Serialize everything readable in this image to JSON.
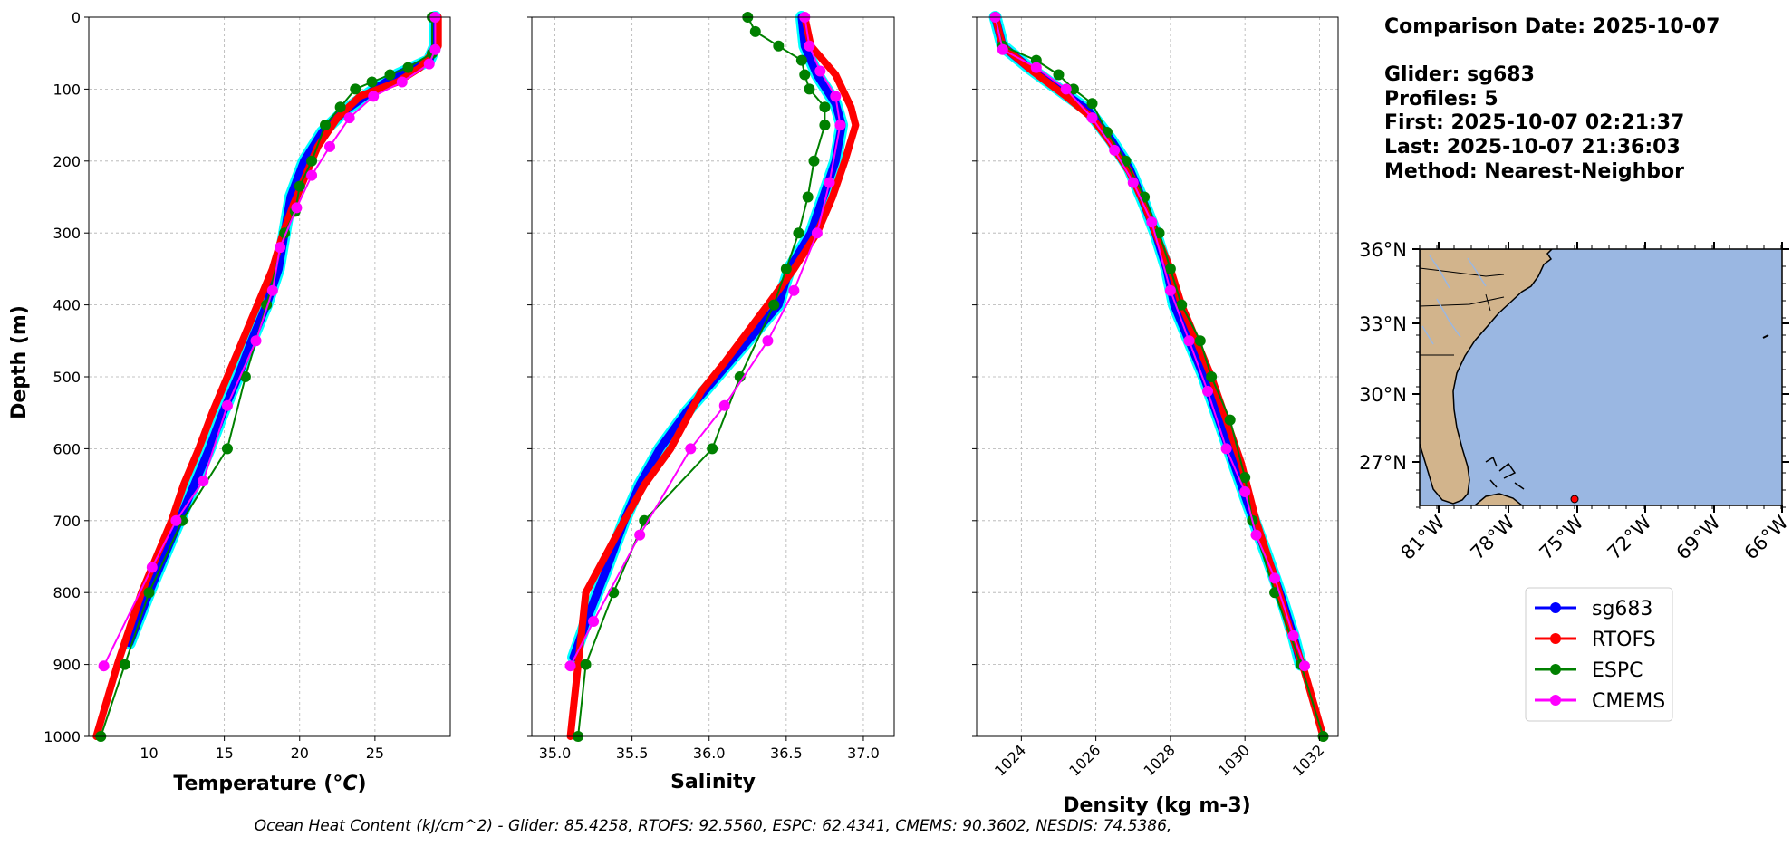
{
  "chart_data": [
    {
      "type": "line",
      "xlabel": "Temperature ($^oC$)",
      "ylabel": "Depth (m)",
      "xlim": [
        6,
        30
      ],
      "ylim": [
        1000,
        0
      ],
      "xticks": [
        "10",
        "15",
        "20",
        "25"
      ],
      "yticks": [
        "0",
        "100",
        "200",
        "300",
        "400",
        "500",
        "600",
        "700",
        "800",
        "900",
        "1000"
      ],
      "grid": true,
      "series": [
        {
          "name": "sg683",
          "points": [
            [
              29.0,
              0
            ],
            [
              29.0,
              20
            ],
            [
              29.0,
              40
            ],
            [
              28.6,
              60
            ],
            [
              26.5,
              80
            ],
            [
              25.0,
              100
            ],
            [
              23.0,
              130
            ],
            [
              21.5,
              160
            ],
            [
              20.3,
              200
            ],
            [
              19.4,
              250
            ],
            [
              19.0,
              300
            ],
            [
              18.6,
              350
            ],
            [
              17.8,
              400
            ],
            [
              16.8,
              450
            ],
            [
              15.9,
              500
            ],
            [
              14.9,
              550
            ],
            [
              14.0,
              600
            ],
            [
              13.0,
              650
            ],
            [
              12.0,
              700
            ],
            [
              11.0,
              750
            ],
            [
              10.0,
              800
            ],
            [
              8.7,
              870
            ]
          ]
        },
        {
          "name": "RTOFS",
          "points": [
            [
              29.2,
              0
            ],
            [
              29.2,
              40
            ],
            [
              28.0,
              70
            ],
            [
              26.5,
              90
            ],
            [
              24.0,
              110
            ],
            [
              22.5,
              140
            ],
            [
              21.2,
              180
            ],
            [
              20.4,
              220
            ],
            [
              19.6,
              260
            ],
            [
              18.9,
              300
            ],
            [
              18.2,
              350
            ],
            [
              17.2,
              400
            ],
            [
              16.2,
              450
            ],
            [
              15.2,
              500
            ],
            [
              14.2,
              550
            ],
            [
              13.3,
              600
            ],
            [
              12.3,
              650
            ],
            [
              11.5,
              700
            ],
            [
              10.5,
              750
            ],
            [
              9.5,
              800
            ],
            [
              7.9,
              900
            ],
            [
              6.5,
              1000
            ]
          ]
        },
        {
          "name": "ESPC",
          "points": [
            [
              28.8,
              0
            ],
            [
              28.8,
              50
            ],
            [
              27.2,
              70
            ],
            [
              26.0,
              80
            ],
            [
              24.8,
              90
            ],
            [
              23.7,
              100
            ],
            [
              22.7,
              125
            ],
            [
              21.7,
              150
            ],
            [
              20.8,
              200
            ],
            [
              20.0,
              235
            ],
            [
              19.7,
              270
            ],
            [
              19.0,
              300
            ],
            [
              17.8,
              400
            ],
            [
              16.4,
              500
            ],
            [
              15.2,
              600
            ],
            [
              12.2,
              700
            ],
            [
              10.0,
              800
            ],
            [
              8.4,
              900
            ],
            [
              6.8,
              1000
            ]
          ]
        },
        {
          "name": "CMEMS",
          "points": [
            [
              29.0,
              0
            ],
            [
              29.0,
              45
            ],
            [
              28.6,
              65
            ],
            [
              26.8,
              90
            ],
            [
              24.9,
              110
            ],
            [
              23.3,
              140
            ],
            [
              22.0,
              180
            ],
            [
              20.8,
              220
            ],
            [
              19.8,
              265
            ],
            [
              18.7,
              320
            ],
            [
              18.2,
              380
            ],
            [
              17.1,
              450
            ],
            [
              15.2,
              540
            ],
            [
              13.6,
              645
            ],
            [
              11.8,
              700
            ],
            [
              10.2,
              765
            ],
            [
              7.0,
              902
            ]
          ]
        }
      ]
    },
    {
      "type": "line",
      "xlabel": "Salinity",
      "ylabel": "",
      "xlim": [
        34.85,
        37.2
      ],
      "ylim": [
        1000,
        0
      ],
      "xticks": [
        "35.0",
        "35.5",
        "36.0",
        "36.5",
        "37.0"
      ],
      "grid": true,
      "series": [
        {
          "name": "sg683",
          "points": [
            [
              36.6,
              0
            ],
            [
              36.62,
              40
            ],
            [
              36.7,
              80
            ],
            [
              36.82,
              120
            ],
            [
              36.86,
              150
            ],
            [
              36.82,
              200
            ],
            [
              36.74,
              250
            ],
            [
              36.66,
              300
            ],
            [
              36.52,
              350
            ],
            [
              36.45,
              400
            ],
            [
              36.25,
              450
            ],
            [
              36.05,
              500
            ],
            [
              35.85,
              550
            ],
            [
              35.68,
              600
            ],
            [
              35.55,
              650
            ],
            [
              35.45,
              700
            ],
            [
              35.33,
              770
            ],
            [
              35.22,
              830
            ],
            [
              35.12,
              890
            ]
          ]
        },
        {
          "name": "RTOFS",
          "points": [
            [
              36.62,
              0
            ],
            [
              36.66,
              40
            ],
            [
              36.82,
              80
            ],
            [
              36.92,
              125
            ],
            [
              36.95,
              150
            ],
            [
              36.88,
              200
            ],
            [
              36.8,
              250
            ],
            [
              36.7,
              300
            ],
            [
              36.55,
              350
            ],
            [
              36.38,
              400
            ],
            [
              36.1,
              480
            ],
            [
              35.95,
              520
            ],
            [
              35.75,
              600
            ],
            [
              35.58,
              650
            ],
            [
              35.45,
              700
            ],
            [
              35.2,
              800
            ],
            [
              35.1,
              1000
            ]
          ]
        },
        {
          "name": "ESPC",
          "points": [
            [
              36.25,
              0
            ],
            [
              36.3,
              20
            ],
            [
              36.45,
              40
            ],
            [
              36.6,
              60
            ],
            [
              36.62,
              80
            ],
            [
              36.65,
              100
            ],
            [
              36.75,
              125
            ],
            [
              36.75,
              150
            ],
            [
              36.68,
              200
            ],
            [
              36.64,
              250
            ],
            [
              36.58,
              300
            ],
            [
              36.5,
              350
            ],
            [
              36.42,
              400
            ],
            [
              36.2,
              500
            ],
            [
              36.02,
              600
            ],
            [
              35.58,
              700
            ],
            [
              35.38,
              800
            ],
            [
              35.2,
              900
            ],
            [
              35.15,
              1000
            ]
          ]
        },
        {
          "name": "CMEMS",
          "points": [
            [
              36.62,
              0
            ],
            [
              36.65,
              40
            ],
            [
              36.72,
              75
            ],
            [
              36.82,
              110
            ],
            [
              36.85,
              150
            ],
            [
              36.78,
              230
            ],
            [
              36.7,
              300
            ],
            [
              36.55,
              380
            ],
            [
              36.38,
              450
            ],
            [
              36.1,
              540
            ],
            [
              35.88,
              600
            ],
            [
              35.55,
              720
            ],
            [
              35.25,
              840
            ],
            [
              35.1,
              902
            ]
          ]
        }
      ]
    },
    {
      "type": "line",
      "xlabel": "Density (kg m-3)",
      "ylabel": "",
      "xlim": [
        1022.8,
        1032.5
      ],
      "ylim": [
        1000,
        0
      ],
      "xticks": [
        "1024",
        "1026",
        "1028",
        "1030",
        "1032"
      ],
      "grid": true,
      "series": [
        {
          "name": "sg683",
          "points": [
            [
              1023.3,
              0
            ],
            [
              1023.5,
              40
            ],
            [
              1024.2,
              70
            ],
            [
              1025.0,
              100
            ],
            [
              1025.8,
              130
            ],
            [
              1026.4,
              170
            ],
            [
              1026.9,
              210
            ],
            [
              1027.3,
              260
            ],
            [
              1027.6,
              300
            ],
            [
              1027.9,
              350
            ],
            [
              1028.1,
              400
            ],
            [
              1028.5,
              450
            ],
            [
              1028.9,
              500
            ],
            [
              1029.3,
              560
            ],
            [
              1029.7,
              620
            ],
            [
              1030.1,
              680
            ],
            [
              1030.6,
              750
            ],
            [
              1031.0,
              810
            ],
            [
              1031.3,
              860
            ],
            [
              1031.5,
              900
            ]
          ]
        },
        {
          "name": "RTOFS",
          "points": [
            [
              1023.3,
              0
            ],
            [
              1023.5,
              40
            ],
            [
              1024.3,
              75
            ],
            [
              1025.2,
              110
            ],
            [
              1025.9,
              140
            ],
            [
              1026.4,
              175
            ],
            [
              1026.9,
              215
            ],
            [
              1027.3,
              260
            ],
            [
              1027.6,
              300
            ],
            [
              1028.0,
              350
            ],
            [
              1028.3,
              400
            ],
            [
              1028.7,
              450
            ],
            [
              1029.1,
              500
            ],
            [
              1029.5,
              560
            ],
            [
              1029.9,
              620
            ],
            [
              1030.3,
              700
            ],
            [
              1030.8,
              780
            ],
            [
              1031.2,
              850
            ],
            [
              1031.6,
              910
            ],
            [
              1032.1,
              1000
            ]
          ]
        },
        {
          "name": "ESPC",
          "points": [
            [
              1023.3,
              0
            ],
            [
              1023.5,
              40
            ],
            [
              1024.4,
              60
            ],
            [
              1025.0,
              80
            ],
            [
              1025.4,
              100
            ],
            [
              1025.9,
              120
            ],
            [
              1026.3,
              160
            ],
            [
              1026.8,
              200
            ],
            [
              1027.3,
              250
            ],
            [
              1027.7,
              300
            ],
            [
              1028.0,
              350
            ],
            [
              1028.3,
              400
            ],
            [
              1028.8,
              450
            ],
            [
              1029.1,
              500
            ],
            [
              1029.6,
              560
            ],
            [
              1030.0,
              640
            ],
            [
              1030.2,
              700
            ],
            [
              1030.8,
              800
            ],
            [
              1031.5,
              900
            ],
            [
              1032.1,
              1000
            ]
          ]
        },
        {
          "name": "CMEMS",
          "points": [
            [
              1023.3,
              0
            ],
            [
              1023.5,
              45
            ],
            [
              1024.4,
              70
            ],
            [
              1025.2,
              100
            ],
            [
              1025.9,
              140
            ],
            [
              1026.5,
              185
            ],
            [
              1027.0,
              230
            ],
            [
              1027.5,
              285
            ],
            [
              1028.0,
              380
            ],
            [
              1028.5,
              450
            ],
            [
              1029.0,
              520
            ],
            [
              1029.5,
              600
            ],
            [
              1030.0,
              660
            ],
            [
              1030.3,
              720
            ],
            [
              1030.8,
              780
            ],
            [
              1031.3,
              860
            ],
            [
              1031.6,
              902
            ]
          ]
        }
      ]
    }
  ],
  "info": {
    "date": "Comparison Date: 2025-10-07",
    "glider": "Glider: sg683",
    "profiles": "Profiles: 5",
    "first": "First: 2025-10-07 02:21:37",
    "last": "Last: 2025-10-07 21:36:03",
    "method": "Method: Nearest-Neighbor"
  },
  "map": {
    "lat_labels": [
      "36°N",
      "33°N",
      "30°N",
      "27°N"
    ],
    "lon_labels": [
      "81°W",
      "78°W",
      "75°W",
      "72°W",
      "69°W",
      "66°W"
    ],
    "land_color": "#d2b48c",
    "ocean_color": "#9ab7e2",
    "marker_lon": -74.7,
    "marker_lat": 25.8
  },
  "legend": [
    "sg683",
    "RTOFS",
    "ESPC",
    "CMEMS"
  ],
  "colors": {
    "sg683": "#0000ff",
    "RTOFS": "#ff0000",
    "ESPC": "#008000",
    "CMEMS": "#ff00ff",
    "glider_band": "#00ffff"
  },
  "footer": "Ocean Heat Content (kJ/cm^2) - Glider: 85.4258,  RTOFS: 92.5560,  ESPC: 62.4341,  CMEMS: 90.3602,  NESDIS: 74.5386,"
}
